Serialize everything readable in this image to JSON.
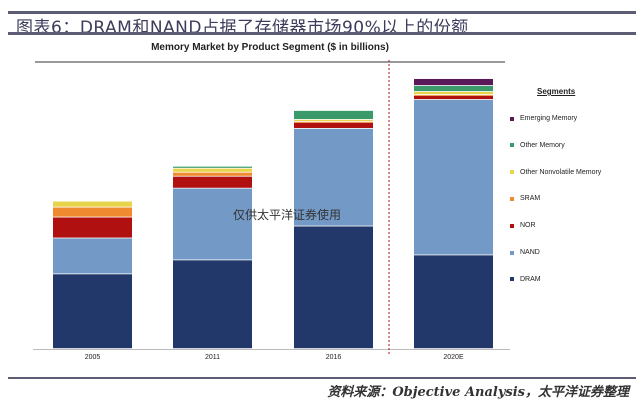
{
  "figure_title": "图表6：DRAM和NAND占据了存储器市场90%以上的份额",
  "source": "资料来源：Objective Analysis，太平洋证券整理",
  "watermark": "仅供太平洋证券使用",
  "chart_data": {
    "type": "bar",
    "stacked": true,
    "title": "Memory Market by Product Segment ($ in billions)",
    "xlabel": "",
    "ylabel": "",
    "categories": [
      "2005",
      "2011",
      "2016",
      "2020E"
    ],
    "legend_title": "Segments",
    "legend_placement": "right",
    "grid": false,
    "ylim": [
      0,
      280
    ],
    "forecast_divider_between": [
      "2016",
      "2020E"
    ],
    "series": [
      {
        "name": "DRAM",
        "color": "#22386a",
        "values": [
          75,
          89,
          123,
          94
        ]
      },
      {
        "name": "NAND",
        "color": "#7399c6",
        "values": [
          36,
          72,
          98,
          156
        ]
      },
      {
        "name": "NOR",
        "color": "#b01010",
        "values": [
          21,
          12,
          6,
          4
        ]
      },
      {
        "name": "SRAM",
        "color": "#f08a30",
        "values": [
          10,
          4,
          1,
          1
        ]
      },
      {
        "name": "Other Nonvolatile Memory",
        "color": "#e8d44a",
        "values": [
          6,
          4,
          2,
          3
        ]
      },
      {
        "name": "Other Memory",
        "color": "#3a9a6a",
        "values": [
          0,
          2,
          9,
          6
        ]
      },
      {
        "name": "Emerging Memory",
        "color": "#5a1a5a",
        "values": [
          0,
          0,
          0,
          7
        ]
      }
    ]
  }
}
